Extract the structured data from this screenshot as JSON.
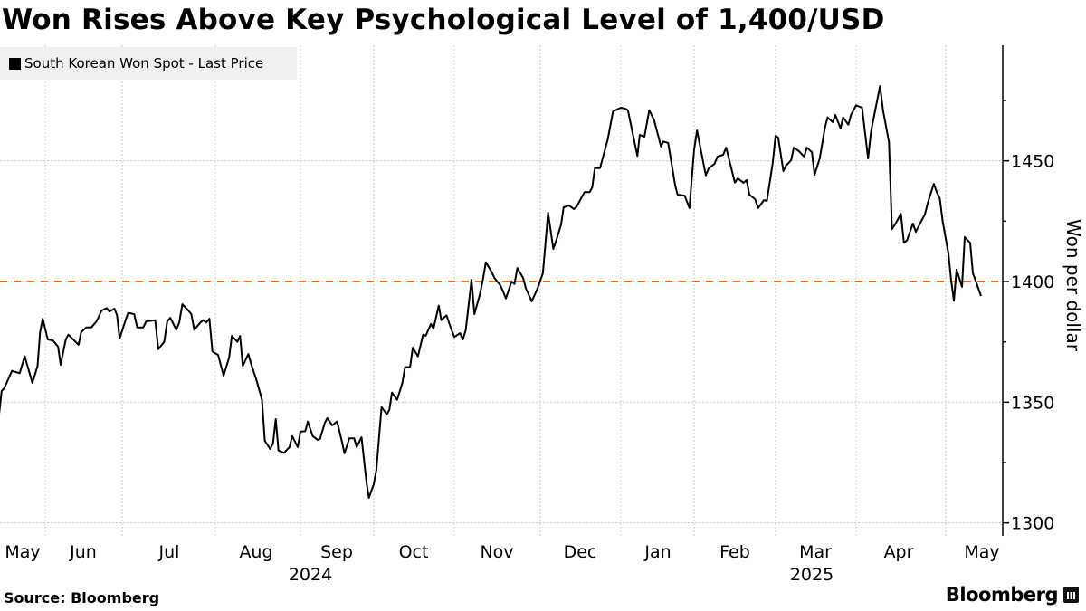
{
  "title": "Won Rises Above Key Psychological Level of 1,400/USD",
  "source": "Source: Bloomberg",
  "logo_text": "Bloomberg",
  "chart_data": {
    "type": "line",
    "title": "Won Rises Above Key Psychological Level of 1,400/USD",
    "ylabel": "Won per dollar",
    "xlabel": "",
    "y_axis_side": "right",
    "ylim": [
      1295,
      1498
    ],
    "yticks": [
      1300,
      1350,
      1400,
      1450
    ],
    "ytick_labels": [
      "1300",
      "1350",
      "1400",
      "1450"
    ],
    "xtick_labels": [
      "May",
      "Jun",
      "Jul",
      "Aug",
      "Sep",
      "Oct",
      "Nov",
      "Dec",
      "Jan",
      "Feb",
      "Mar",
      "Apr",
      "May"
    ],
    "year_labels": [
      "2024",
      "2025"
    ],
    "grid": true,
    "legend": {
      "position": "top-left",
      "entries": [
        "South Korean Won Spot - Last Price"
      ]
    },
    "reference_line": {
      "value": 1400,
      "color": "#f26b1d",
      "style": "dashed"
    },
    "colors": {
      "series": "#000000",
      "reference": "#f26b1d",
      "legend_bg": "#f0f0f0",
      "grid": "#c8c8c8"
    },
    "series": [
      {
        "name": "South Korean Won Spot - Last Price",
        "points": [
          [
            "2024-05-14",
            1345
          ],
          [
            "2024-05-15",
            1354.6
          ],
          [
            "2024-05-16",
            1355.8
          ],
          [
            "2024-05-19",
            1363
          ],
          [
            "2024-05-22",
            1362
          ],
          [
            "2024-05-24",
            1369
          ],
          [
            "2024-05-27",
            1358
          ],
          [
            "2024-05-29",
            1365
          ],
          [
            "2024-05-30",
            1379
          ],
          [
            "2024-05-31",
            1384.6
          ],
          [
            "2024-06-02",
            1376
          ],
          [
            "2024-06-04",
            1375.6
          ],
          [
            "2024-06-06",
            1373
          ],
          [
            "2024-06-07",
            1365.5
          ],
          [
            "2024-06-09",
            1376
          ],
          [
            "2024-06-10",
            1378
          ],
          [
            "2024-06-14",
            1373.8
          ],
          [
            "2024-06-15",
            1379
          ],
          [
            "2024-06-17",
            1381
          ],
          [
            "2024-06-19",
            1381
          ],
          [
            "2024-06-21",
            1383.5
          ],
          [
            "2024-06-23",
            1388
          ],
          [
            "2024-06-25",
            1389
          ],
          [
            "2024-06-26",
            1387.6
          ],
          [
            "2024-06-28",
            1388.7
          ],
          [
            "2024-06-29",
            1386
          ],
          [
            "2024-06-30",
            1376.4
          ],
          [
            "2024-07-02",
            1383.5
          ],
          [
            "2024-07-03",
            1387
          ],
          [
            "2024-07-05",
            1386.5
          ],
          [
            "2024-07-06",
            1381
          ],
          [
            "2024-07-08",
            1381
          ],
          [
            "2024-07-09",
            1383.5
          ],
          [
            "2024-07-12",
            1384
          ],
          [
            "2024-07-13",
            1372
          ],
          [
            "2024-07-15",
            1375
          ],
          [
            "2024-07-16",
            1383.5
          ],
          [
            "2024-07-17",
            1385
          ],
          [
            "2024-07-19",
            1380
          ],
          [
            "2024-07-20",
            1383
          ],
          [
            "2024-07-21",
            1390.6
          ],
          [
            "2024-07-23",
            1388
          ],
          [
            "2024-07-24",
            1386.5
          ],
          [
            "2024-07-25",
            1380
          ],
          [
            "2024-07-27",
            1383
          ],
          [
            "2024-07-28",
            1384
          ],
          [
            "2024-07-29",
            1383
          ],
          [
            "2024-07-30",
            1384.6
          ],
          [
            "2024-07-31",
            1371
          ],
          [
            "2024-08-02",
            1369.6
          ],
          [
            "2024-08-04",
            1361
          ],
          [
            "2024-08-06",
            1368.5
          ],
          [
            "2024-08-07",
            1377.5
          ],
          [
            "2024-08-09",
            1375
          ],
          [
            "2024-08-10",
            1377.5
          ],
          [
            "2024-08-11",
            1365
          ],
          [
            "2024-08-13",
            1370
          ],
          [
            "2024-08-14",
            1366
          ],
          [
            "2024-08-16",
            1359
          ],
          [
            "2024-08-18",
            1351
          ],
          [
            "2024-08-19",
            1334
          ],
          [
            "2024-08-21",
            1330.6
          ],
          [
            "2024-08-22",
            1333
          ],
          [
            "2024-08-23",
            1343
          ],
          [
            "2024-08-24",
            1330
          ],
          [
            "2024-08-26",
            1329
          ],
          [
            "2024-08-28",
            1331.4
          ],
          [
            "2024-08-29",
            1336
          ],
          [
            "2024-08-31",
            1331.4
          ],
          [
            "2024-09-01",
            1337.8
          ],
          [
            "2024-09-03",
            1338
          ],
          [
            "2024-09-04",
            1342
          ],
          [
            "2024-09-06",
            1336
          ],
          [
            "2024-09-08",
            1334.4
          ],
          [
            "2024-09-09",
            1334.8
          ],
          [
            "2024-09-11",
            1341.5
          ],
          [
            "2024-09-12",
            1343.4
          ],
          [
            "2024-09-14",
            1340.4
          ],
          [
            "2024-09-16",
            1342
          ],
          [
            "2024-09-18",
            1333.6
          ],
          [
            "2024-09-19",
            1328.8
          ],
          [
            "2024-09-21",
            1335
          ],
          [
            "2024-09-23",
            1335
          ],
          [
            "2024-09-24",
            1331.4
          ],
          [
            "2024-09-26",
            1335.5
          ],
          [
            "2024-09-28",
            1317
          ],
          [
            "2024-09-29",
            1310.4
          ],
          [
            "2024-10-01",
            1316
          ],
          [
            "2024-10-02",
            1322
          ],
          [
            "2024-10-04",
            1348
          ],
          [
            "2024-10-06",
            1345
          ],
          [
            "2024-10-07",
            1346.8
          ],
          [
            "2024-10-08",
            1354
          ],
          [
            "2024-10-10",
            1351
          ],
          [
            "2024-10-12",
            1358
          ],
          [
            "2024-10-13",
            1364.4
          ],
          [
            "2024-10-15",
            1364.8
          ],
          [
            "2024-10-16",
            1372.6
          ],
          [
            "2024-10-18",
            1369
          ],
          [
            "2024-10-20",
            1378
          ],
          [
            "2024-10-21",
            1377.5
          ],
          [
            "2024-10-23",
            1382.4
          ],
          [
            "2024-10-24",
            1380.5
          ],
          [
            "2024-10-26",
            1390
          ],
          [
            "2024-10-27",
            1384
          ],
          [
            "2024-10-29",
            1386
          ],
          [
            "2024-10-31",
            1379.8
          ],
          [
            "2024-11-01",
            1377
          ],
          [
            "2024-11-03",
            1378.6
          ],
          [
            "2024-11-04",
            1376
          ],
          [
            "2024-11-05",
            1380
          ],
          [
            "2024-11-07",
            1400.7
          ],
          [
            "2024-11-08",
            1386.5
          ],
          [
            "2024-11-10",
            1395
          ],
          [
            "2024-11-11",
            1401
          ],
          [
            "2024-11-12",
            1408
          ],
          [
            "2024-11-14",
            1404
          ],
          [
            "2024-11-15",
            1401.5
          ],
          [
            "2024-11-17",
            1398.5
          ],
          [
            "2024-11-18",
            1396
          ],
          [
            "2024-11-19",
            1393
          ],
          [
            "2024-11-21",
            1400
          ],
          [
            "2024-11-22",
            1399
          ],
          [
            "2024-11-23",
            1405.6
          ],
          [
            "2024-11-25",
            1401.5
          ],
          [
            "2024-11-26",
            1397
          ],
          [
            "2024-11-28",
            1391.8
          ],
          [
            "2024-11-29",
            1394.4
          ],
          [
            "2024-11-30",
            1397
          ],
          [
            "2024-12-02",
            1403.4
          ],
          [
            "2024-12-04",
            1428.5
          ],
          [
            "2024-12-06",
            1413.5
          ],
          [
            "2024-12-07",
            1416.5
          ],
          [
            "2024-12-09",
            1423.6
          ],
          [
            "2024-12-10",
            1430.7
          ],
          [
            "2024-12-12",
            1431.5
          ],
          [
            "2024-12-14",
            1430
          ],
          [
            "2024-12-15",
            1431
          ],
          [
            "2024-12-17",
            1435
          ],
          [
            "2024-12-18",
            1437
          ],
          [
            "2024-12-20",
            1437
          ],
          [
            "2024-12-21",
            1439
          ],
          [
            "2024-12-22",
            1447
          ],
          [
            "2024-12-24",
            1447
          ],
          [
            "2024-12-25",
            1451
          ],
          [
            "2024-12-27",
            1459
          ],
          [
            "2024-12-29",
            1470.5
          ],
          [
            "2024-12-30",
            1471
          ],
          [
            "2025-01-01",
            1472
          ],
          [
            "2025-01-03",
            1471.6
          ],
          [
            "2025-01-04",
            1471
          ],
          [
            "2025-01-08",
            1452
          ],
          [
            "2025-01-09",
            1460.7
          ],
          [
            "2025-01-11",
            1460
          ],
          [
            "2025-01-13",
            1471
          ],
          [
            "2025-01-15",
            1467
          ],
          [
            "2025-01-18",
            1455.9
          ],
          [
            "2025-01-19",
            1458
          ],
          [
            "2025-01-21",
            1457.4
          ],
          [
            "2025-01-24",
            1439.7
          ],
          [
            "2025-01-25",
            1436
          ],
          [
            "2025-01-28",
            1435.6
          ],
          [
            "2025-01-30",
            1430.4
          ],
          [
            "2025-02-01",
            1454.7
          ],
          [
            "2025-02-02",
            1462.6
          ],
          [
            "2025-02-05",
            1444
          ],
          [
            "2025-02-06",
            1446.9
          ],
          [
            "2025-02-08",
            1448.7
          ],
          [
            "2025-02-09",
            1451.7
          ],
          [
            "2025-02-11",
            1452.5
          ],
          [
            "2025-02-12",
            1455.5
          ],
          [
            "2025-02-15",
            1441
          ],
          [
            "2025-02-16",
            1442.7
          ],
          [
            "2025-02-18",
            1440.9
          ],
          [
            "2025-02-19",
            1442
          ],
          [
            "2025-02-20",
            1436
          ],
          [
            "2025-02-22",
            1434
          ],
          [
            "2025-02-23",
            1430.4
          ],
          [
            "2025-02-25",
            1433.7
          ],
          [
            "2025-02-26",
            1433.4
          ],
          [
            "2025-02-28",
            1449
          ],
          [
            "2025-03-01",
            1460.4
          ],
          [
            "2025-03-02",
            1459.6
          ],
          [
            "2025-03-04",
            1445.7
          ],
          [
            "2025-03-05",
            1448
          ],
          [
            "2025-03-07",
            1450.2
          ],
          [
            "2025-03-08",
            1455.5
          ],
          [
            "2025-03-10",
            1454
          ],
          [
            "2025-03-12",
            1451.7
          ],
          [
            "2025-03-13",
            1455.5
          ],
          [
            "2025-03-15",
            1453.6
          ],
          [
            "2025-03-16",
            1444.2
          ],
          [
            "2025-03-18",
            1451
          ],
          [
            "2025-03-20",
            1463.7
          ],
          [
            "2025-03-21",
            1468
          ],
          [
            "2025-03-23",
            1466
          ],
          [
            "2025-03-24",
            1469
          ],
          [
            "2025-03-26",
            1463.4
          ],
          [
            "2025-03-27",
            1468
          ],
          [
            "2025-03-29",
            1465
          ],
          [
            "2025-03-30",
            1469
          ],
          [
            "2025-04-01",
            1473
          ],
          [
            "2025-04-03",
            1472
          ],
          [
            "2025-04-05",
            1451
          ],
          [
            "2025-04-06",
            1462.2
          ],
          [
            "2025-04-09",
            1481
          ],
          [
            "2025-04-10",
            1471
          ],
          [
            "2025-04-12",
            1457.7
          ],
          [
            "2025-04-13",
            1421.7
          ],
          [
            "2025-04-14",
            1423.6
          ],
          [
            "2025-04-16",
            1428
          ],
          [
            "2025-04-17",
            1416
          ],
          [
            "2025-04-18",
            1417
          ],
          [
            "2025-04-20",
            1424
          ],
          [
            "2025-04-21",
            1420.6
          ],
          [
            "2025-04-23",
            1425.5
          ],
          [
            "2025-04-24",
            1427.7
          ],
          [
            "2025-04-25",
            1432.6
          ],
          [
            "2025-04-27",
            1440.5
          ],
          [
            "2025-04-28",
            1437
          ],
          [
            "2025-04-29",
            1434.5
          ],
          [
            "2025-04-30",
            1424.7
          ],
          [
            "2025-05-02",
            1411.6
          ],
          [
            "2025-05-03",
            1400.4
          ],
          [
            "2025-05-04",
            1392
          ],
          [
            "2025-05-05",
            1405
          ],
          [
            "2025-05-07",
            1397.8
          ],
          [
            "2025-05-08",
            1418.4
          ],
          [
            "2025-05-10",
            1416
          ],
          [
            "2025-05-11",
            1403.4
          ],
          [
            "2025-05-12",
            1400.4
          ],
          [
            "2025-05-14",
            1394
          ]
        ]
      }
    ]
  }
}
